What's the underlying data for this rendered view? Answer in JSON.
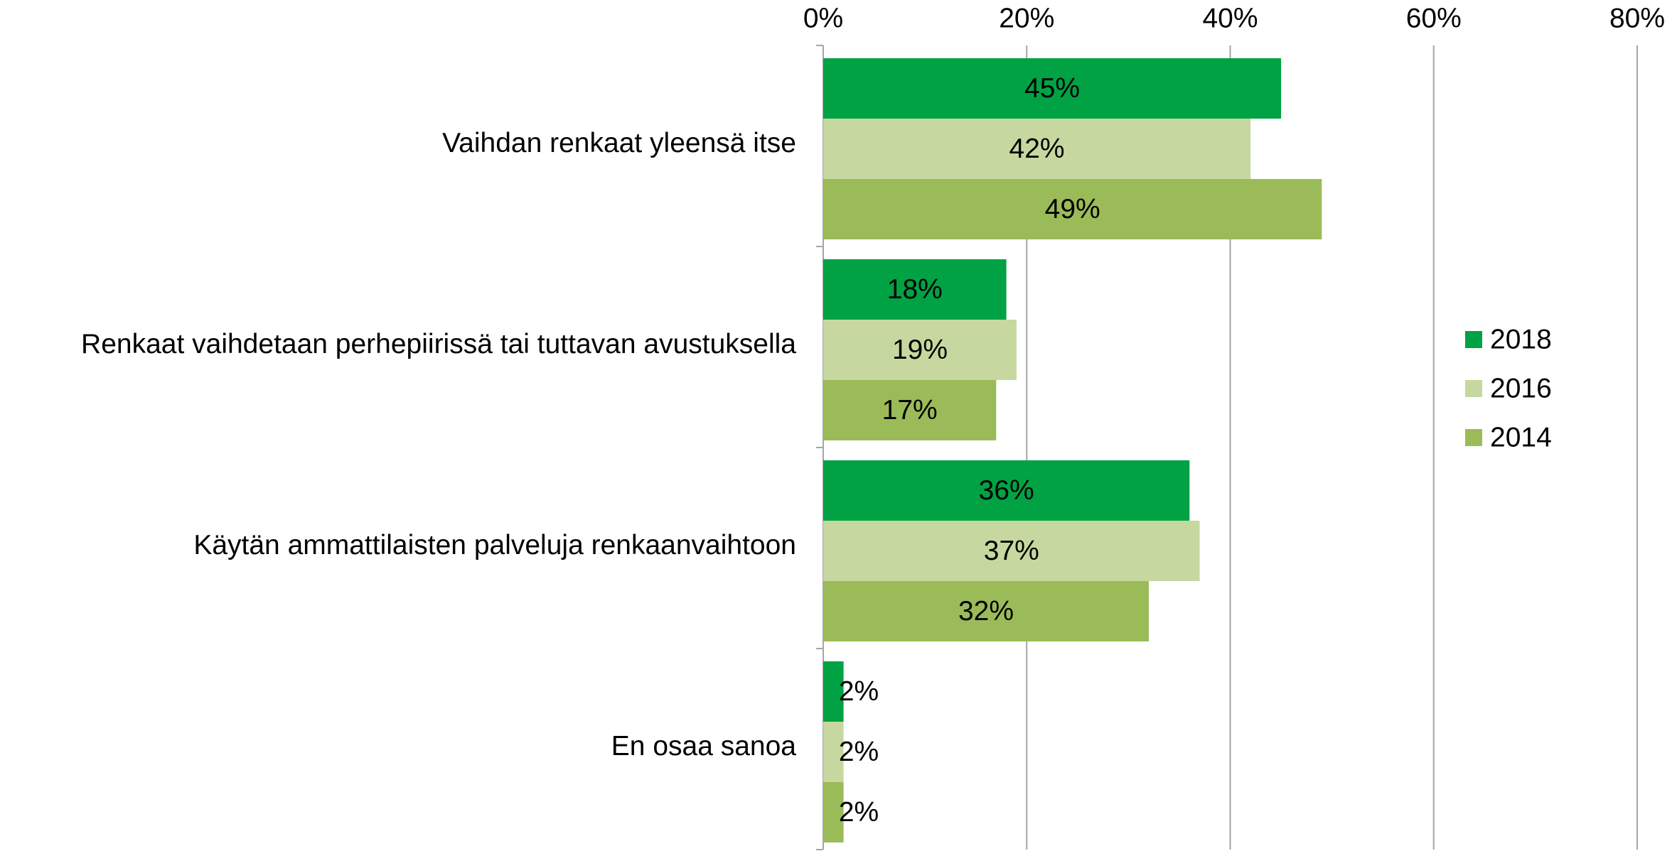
{
  "chart_data": {
    "type": "bar",
    "orientation": "horizontal",
    "categories": [
      "Vaihdan renkaat yleensä itse",
      "Renkaat vaihdetaan perhepiirissä tai tuttavan avustuksella",
      "Käytän ammattilaisten palveluja renkaanvaihtoon",
      "En osaa sanoa"
    ],
    "series": [
      {
        "name": "2018",
        "color": "#00a244",
        "values": [
          45,
          18,
          36,
          2
        ],
        "value_labels": [
          "45%",
          "18%",
          "36%",
          "2%"
        ]
      },
      {
        "name": "2016",
        "color": "#c6d89f",
        "values": [
          42,
          19,
          37,
          2
        ],
        "value_labels": [
          "42%",
          "19%",
          "37%",
          "2%"
        ]
      },
      {
        "name": "2014",
        "color": "#9bbb59",
        "values": [
          49,
          17,
          32,
          2
        ],
        "value_labels": [
          "49%",
          "17%",
          "32%",
          "2%"
        ]
      }
    ],
    "xlim": [
      0,
      80
    ],
    "xticks": [
      {
        "value": 0,
        "label": "0%"
      },
      {
        "value": 20,
        "label": "20%"
      },
      {
        "value": 40,
        "label": "40%"
      },
      {
        "value": 60,
        "label": "60%"
      },
      {
        "value": 80,
        "label": "80%"
      }
    ],
    "grid": true,
    "legend": "right"
  }
}
